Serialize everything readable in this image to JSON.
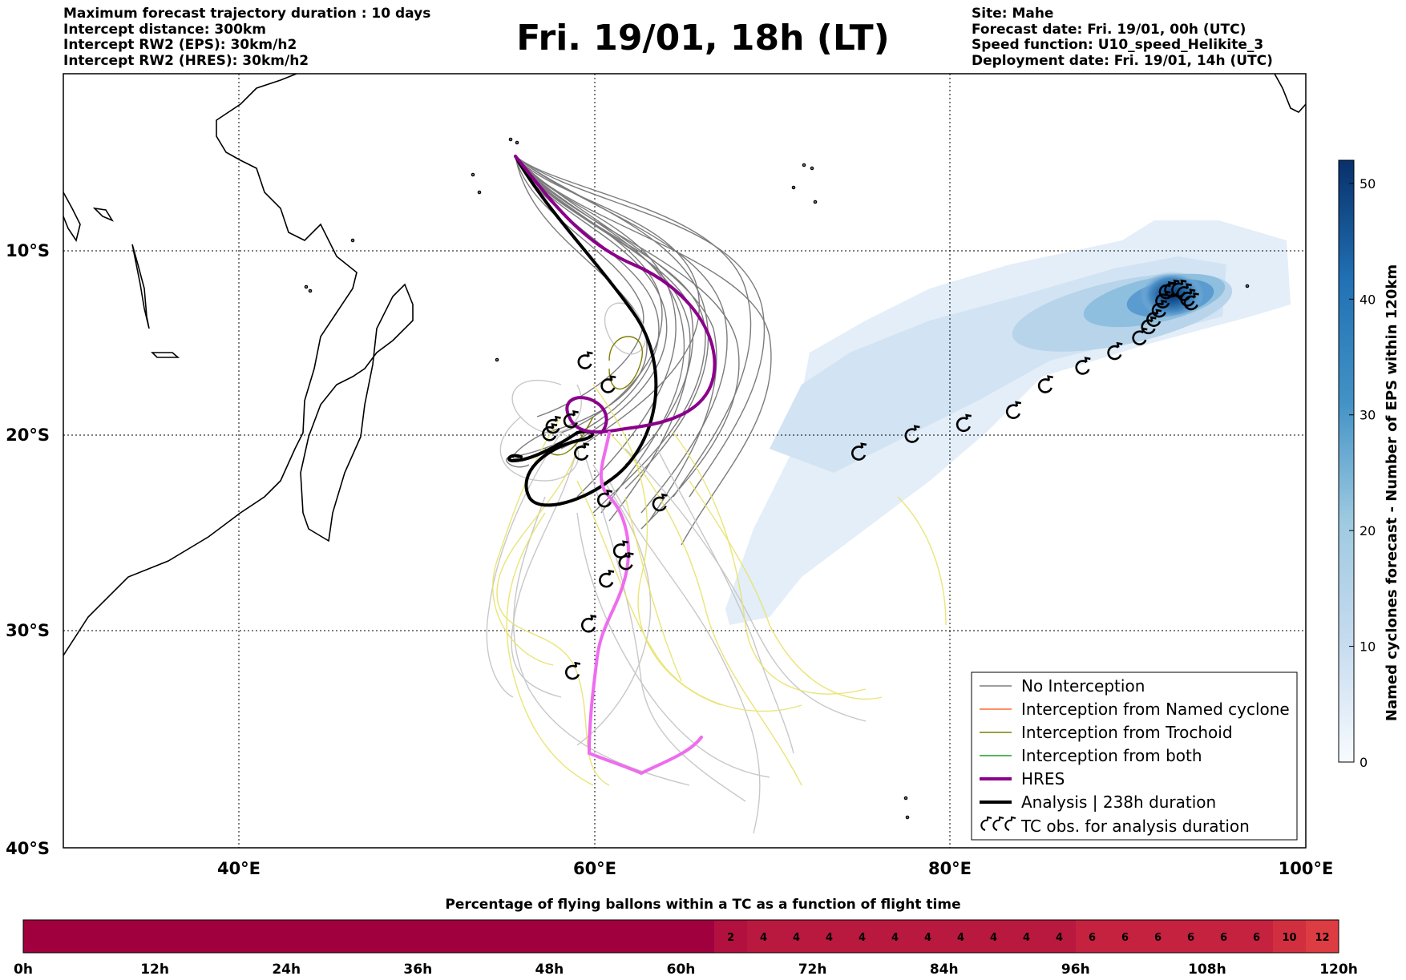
{
  "header_left": [
    "Maximum forecast trajectory duration : 10 days",
    "Intercept distance: 300km",
    "Intercept RW2 (EPS):  30km/h2",
    "Intercept RW2 (HRES): 30km/h2"
  ],
  "header_right": [
    "Site: Mahe",
    "Forecast date: Fri. 19/01, 00h (UTC)",
    "Speed function: U10_speed_Helikite_3",
    "Deployment date: Fri. 19/01, 14h (UTC)"
  ],
  "title": "Fri. 19/01, 18h (LT)",
  "map": {
    "lon_ticks": [
      "40°E",
      "60°E",
      "80°E",
      "100°E"
    ],
    "lat_ticks": [
      "10°S",
      "20°S",
      "30°S",
      "40°S"
    ],
    "lon_range": [
      30,
      100
    ],
    "lat_range": [
      -40,
      0
    ],
    "grid": true
  },
  "legend": [
    {
      "label": "No Interception",
      "color": "#7f7f7f"
    },
    {
      "label": "Interception from Named cyclone",
      "color": "#ff6a2e"
    },
    {
      "label": "Interception from Trochoid",
      "color": "#7f7f00"
    },
    {
      "label": "Interception from both",
      "color": "#1f9e2a"
    },
    {
      "label": "HRES",
      "color": "#8b008b"
    },
    {
      "label": "Analysis | 238h duration",
      "color": "#000000"
    },
    {
      "label": "TC obs. for analysis duration",
      "color": "#000000",
      "icon": "cyclone-icon"
    }
  ],
  "colorbar": {
    "label": "Named cyclones forecast - Number of EPS within 120km",
    "ticks": [
      "0",
      "10",
      "20",
      "30",
      "40",
      "50"
    ],
    "range": [
      0,
      52
    ]
  },
  "bottom_bar": {
    "title": "Percentage of flying ballons within a TC as a function of flight time",
    "time_ticks": [
      "0h",
      "12h",
      "24h",
      "36h",
      "48h",
      "60h",
      "72h",
      "84h",
      "96h",
      "108h",
      "120h"
    ],
    "cells": [
      "2",
      "4",
      "4",
      "4",
      "4",
      "4",
      "4",
      "4",
      "4",
      "4",
      "4",
      "6",
      "6",
      "6",
      "6",
      "6",
      "6",
      "10",
      "12"
    ]
  },
  "chart_data": {
    "type": "scatter",
    "title": "Fri. 19/01, 18h (LT)",
    "series": [
      {
        "name": "TC obs. for analysis duration",
        "x": [
          59.5,
          60.8,
          58.7,
          57.7,
          57.5,
          59.3,
          60.6,
          63.7,
          61.5,
          61.8,
          60.7,
          59.7,
          58.8,
          74.9,
          77.9,
          80.8,
          83.6,
          85.4,
          87.5,
          89.3,
          90.7,
          91.2,
          91.5,
          91.8,
          92.0,
          92.2,
          92.5,
          92.9,
          93.2,
          93.4,
          93.6
        ],
        "y": [
          -16.0,
          -17.3,
          -19.2,
          -19.5,
          -19.9,
          -20.9,
          -23.3,
          -23.5,
          -25.9,
          -26.5,
          -27.4,
          -29.7,
          -31.9,
          -20.9,
          -20.0,
          -19.4,
          -18.7,
          -17.3,
          -16.3,
          -15.5,
          -14.7,
          -14.1,
          -13.7,
          -13.2,
          -12.7,
          -12.2,
          -12.1,
          -12.1,
          -12.3,
          -12.6,
          -12.8
        ]
      }
    ]
  }
}
